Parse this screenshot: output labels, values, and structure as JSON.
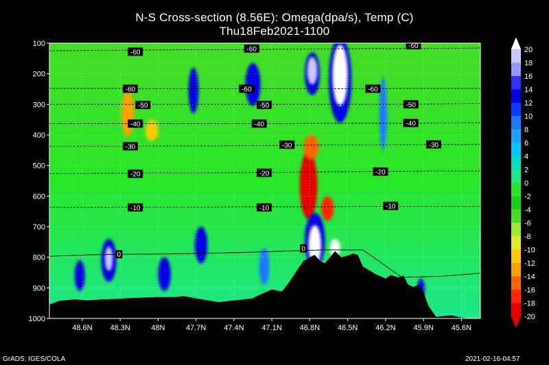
{
  "title": "N-S Cross-section (8.56E): Omega(dpa/s), Temp (C)",
  "subtitle": "Thu18Feb2021-1100",
  "footer_left": "GrADS: IGES/COLA",
  "footer_right": "2021-02-16-04:57",
  "chart_data": {
    "type": "heatmap",
    "title": "N-S Cross-section (8.56E): Omega(dpa/s), Temp (C)",
    "subtitle": "Thu18Feb2021-1100",
    "xlabel": "",
    "ylabel": "",
    "x_ticks": [
      "48.6N",
      "48.3N",
      "48N",
      "47.7N",
      "47.4N",
      "47.1N",
      "46.8N",
      "46.5N",
      "46.2N",
      "45.9N",
      "45.6N"
    ],
    "x_tick_values": [
      48.6,
      48.3,
      48.0,
      47.7,
      47.4,
      47.1,
      46.8,
      46.5,
      46.2,
      45.9,
      45.6
    ],
    "xlim": [
      48.86,
      45.45
    ],
    "y_ticks": [
      "100",
      "200",
      "300",
      "400",
      "500",
      "600",
      "700",
      "800",
      "900",
      "1000"
    ],
    "y_tick_values": [
      100,
      200,
      300,
      400,
      500,
      600,
      700,
      800,
      900,
      1000
    ],
    "ylim": [
      1000,
      100
    ],
    "colorbar": {
      "labels": [
        "20",
        "18",
        "16",
        "14",
        "12",
        "10",
        "8",
        "6",
        "4",
        "2",
        "0",
        "-2",
        "-4",
        "-6",
        "-8",
        "-10",
        "-12",
        "-14",
        "-16",
        "-18",
        "-20"
      ],
      "colors": [
        "#ffffff",
        "#c8c8ff",
        "#9696ff",
        "#3232ff",
        "#0000e0",
        "#0a3cff",
        "#1e78ff",
        "#1ea0ff",
        "#00c8ff",
        "#00e0c0",
        "#1ee68c",
        "#28e628",
        "#1ecc1e",
        "#46dc28",
        "#a0e632",
        "#e6e628",
        "#ffc800",
        "#ffa000",
        "#ff6400",
        "#ff2800",
        "#e60000"
      ]
    },
    "isotherms": [
      {
        "label": "-60",
        "p": [
          125,
          124,
          123,
          122,
          121,
          121,
          120,
          119,
          118,
          118,
          117,
          116
        ]
      },
      {
        "label": "-60",
        "p": [
          248,
          248,
          248,
          249,
          249,
          249,
          249,
          249,
          249,
          248,
          248,
          248
        ]
      },
      {
        "label": "-50",
        "p": [
          300,
          300,
          300,
          300,
          300,
          300,
          300,
          300,
          300,
          300,
          299,
          298
        ]
      },
      {
        "label": "-40",
        "p": [
          363,
          363,
          363,
          363,
          363,
          363,
          363,
          362,
          362,
          362,
          361,
          360
        ]
      },
      {
        "label": "-30",
        "p": [
          437,
          437,
          437,
          436,
          436,
          435,
          434,
          433,
          433,
          432,
          432,
          431
        ]
      },
      {
        "label": "-20",
        "p": [
          527,
          526,
          525,
          524,
          524,
          523,
          522,
          521,
          520,
          519,
          518,
          518
        ]
      },
      {
        "label": "-10",
        "p": [
          637,
          637,
          636,
          636,
          636,
          635,
          635,
          635,
          634,
          634,
          634,
          634
        ]
      },
      {
        "label": "0",
        "p": [
          797,
          792,
          790,
          789,
          787,
          784,
          780,
          776,
          776,
          866,
          862,
          852
        ]
      }
    ],
    "contour_labels": [
      {
        "text": "-60",
        "lat": 48.18,
        "p": 128
      },
      {
        "text": "-60",
        "lat": 47.26,
        "p": 118
      },
      {
        "text": "-60",
        "lat": 45.98,
        "p": 107
      },
      {
        "text": "-60",
        "lat": 48.22,
        "p": 249
      },
      {
        "text": "-60",
        "lat": 47.3,
        "p": 249
      },
      {
        "text": "-60",
        "lat": 46.3,
        "p": 249
      },
      {
        "text": "-50",
        "lat": 48.12,
        "p": 302
      },
      {
        "text": "-50",
        "lat": 47.16,
        "p": 302
      },
      {
        "text": "-50",
        "lat": 46.0,
        "p": 300
      },
      {
        "text": "-40",
        "lat": 48.18,
        "p": 363
      },
      {
        "text": "-40",
        "lat": 47.2,
        "p": 363
      },
      {
        "text": "-40",
        "lat": 46.0,
        "p": 361
      },
      {
        "text": "-30",
        "lat": 48.22,
        "p": 437
      },
      {
        "text": "-30",
        "lat": 46.98,
        "p": 432
      },
      {
        "text": "-30",
        "lat": 45.82,
        "p": 431
      },
      {
        "text": "-20",
        "lat": 48.18,
        "p": 527
      },
      {
        "text": "-20",
        "lat": 47.16,
        "p": 524
      },
      {
        "text": "-20",
        "lat": 46.24,
        "p": 520
      },
      {
        "text": "-10",
        "lat": 48.18,
        "p": 637
      },
      {
        "text": "-10",
        "lat": 47.16,
        "p": 637
      },
      {
        "text": "-10",
        "lat": 46.16,
        "p": 632
      },
      {
        "text": "0",
        "lat": 48.31,
        "p": 790
      },
      {
        "text": "0",
        "lat": 46.85,
        "p": 771
      }
    ],
    "terrain": {
      "lat": [
        48.86,
        48.78,
        48.66,
        48.56,
        48.44,
        48.32,
        48.2,
        48.0,
        47.86,
        47.8,
        47.66,
        47.52,
        47.38,
        47.26,
        47.17,
        47.1,
        47.02,
        46.96,
        46.9,
        46.85,
        46.8,
        46.76,
        46.72,
        46.68,
        46.64,
        46.6,
        46.55,
        46.5,
        46.46,
        46.42,
        46.38,
        46.32,
        46.28,
        46.24,
        46.2,
        46.16,
        46.1,
        46.06,
        46.02,
        45.98,
        45.94,
        45.9,
        45.86,
        45.8,
        45.74,
        45.68,
        45.6,
        45.52,
        45.45
      ],
      "p": [
        955,
        942,
        938,
        941,
        938,
        936,
        933,
        930,
        930,
        927,
        937,
        947,
        940,
        935,
        918,
        905,
        912,
        880,
        842,
        812,
        800,
        792,
        812,
        820,
        800,
        780,
        800,
        795,
        788,
        792,
        830,
        845,
        855,
        862,
        870,
        858,
        866,
        860,
        890,
        897,
        890,
        915,
        960,
        995,
        992,
        990,
        997,
        1000,
        1000
      ]
    },
    "features": [
      {
        "kind": "descent",
        "color": "#e60000",
        "lat": 46.81,
        "p": 565,
        "rlat": 0.07,
        "rp": 110
      },
      {
        "kind": "descent",
        "color": "#ff6400",
        "lat": 46.79,
        "p": 440,
        "rlat": 0.06,
        "rp": 40
      },
      {
        "kind": "descent",
        "color": "#ff2800",
        "lat": 46.66,
        "p": 640,
        "rlat": 0.05,
        "rp": 40
      },
      {
        "kind": "descent",
        "color": "#ffa000",
        "lat": 48.24,
        "p": 330,
        "rlat": 0.05,
        "rp": 75
      },
      {
        "kind": "descent",
        "color": "#ffc800",
        "lat": 48.05,
        "p": 385,
        "rlat": 0.05,
        "rp": 35
      },
      {
        "kind": "ascent",
        "color": "#0000e0",
        "lat": 46.56,
        "p": 220,
        "rlat": 0.09,
        "rp": 140
      },
      {
        "kind": "ascent",
        "color": "#ffffff",
        "lat": 46.56,
        "p": 205,
        "rlat": 0.06,
        "rp": 100
      },
      {
        "kind": "ascent",
        "color": "#0000e0",
        "lat": 46.78,
        "p": 200,
        "rlat": 0.06,
        "rp": 70
      },
      {
        "kind": "ascent",
        "color": "#c8c8ff",
        "lat": 46.78,
        "p": 190,
        "rlat": 0.04,
        "rp": 45
      },
      {
        "kind": "ascent",
        "color": "#0000e0",
        "lat": 46.76,
        "p": 745,
        "rlat": 0.08,
        "rp": 90
      },
      {
        "kind": "ascent",
        "color": "#ffffff",
        "lat": 46.76,
        "p": 760,
        "rlat": 0.05,
        "rp": 65
      },
      {
        "kind": "ascent",
        "color": "#ffffff",
        "lat": 46.6,
        "p": 770,
        "rlat": 0.04,
        "rp": 30
      },
      {
        "kind": "ascent",
        "color": "#0000e0",
        "lat": 48.39,
        "p": 810,
        "rlat": 0.06,
        "rp": 70
      },
      {
        "kind": "ascent",
        "color": "#c8c8ff",
        "lat": 48.39,
        "p": 805,
        "rlat": 0.03,
        "rp": 40
      },
      {
        "kind": "ascent",
        "color": "#0000e0",
        "lat": 48.62,
        "p": 860,
        "rlat": 0.04,
        "rp": 50
      },
      {
        "kind": "ascent",
        "color": "#0000e0",
        "lat": 47.95,
        "p": 855,
        "rlat": 0.05,
        "rp": 55
      },
      {
        "kind": "ascent",
        "color": "#0000e0",
        "lat": 47.72,
        "p": 255,
        "rlat": 0.04,
        "rp": 75
      },
      {
        "kind": "ascent",
        "color": "#0000e0",
        "lat": 47.25,
        "p": 235,
        "rlat": 0.06,
        "rp": 70
      },
      {
        "kind": "ascent",
        "color": "#0000e0",
        "lat": 47.66,
        "p": 760,
        "rlat": 0.05,
        "rp": 60
      },
      {
        "kind": "ascent",
        "color": "#1e78ff",
        "lat": 47.16,
        "p": 830,
        "rlat": 0.04,
        "rp": 60
      },
      {
        "kind": "ascent",
        "color": "#1e78ff",
        "lat": 46.22,
        "p": 330,
        "rlat": 0.03,
        "rp": 120
      },
      {
        "kind": "ascent",
        "color": "#0000e0",
        "lat": 45.92,
        "p": 905,
        "rlat": 0.03,
        "rp": 35
      }
    ]
  }
}
